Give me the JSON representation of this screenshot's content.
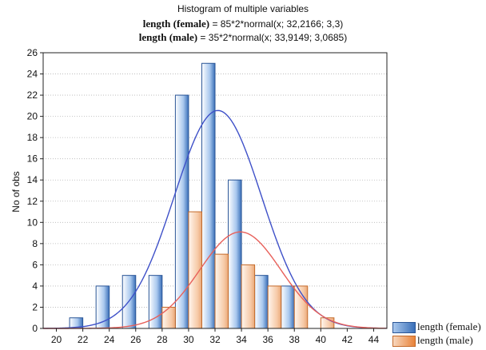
{
  "chart_data": {
    "type": "bar",
    "title": "Histogram of multiple variables",
    "subtitles": [
      {
        "label": "length (female)",
        "formula": "= 85*2*normal(x; 32,2166; 3,3)"
      },
      {
        "label": "length (male)",
        "formula": "= 35*2*normal(x; 33,9149; 3,0685)"
      }
    ],
    "xlabel": "",
    "ylabel": "No of obs",
    "xlim": [
      19,
      45
    ],
    "ylim": [
      0,
      26
    ],
    "x_ticks": [
      20,
      22,
      24,
      26,
      28,
      30,
      32,
      34,
      36,
      38,
      40,
      42,
      44
    ],
    "y_ticks": [
      0,
      2,
      4,
      6,
      8,
      10,
      12,
      14,
      16,
      18,
      20,
      22,
      24,
      26
    ],
    "bin_width": 2,
    "series": [
      {
        "name": "length (female)",
        "color": "#3a6fb8",
        "bins": [
          20,
          22,
          24,
          26,
          28,
          30,
          32,
          34,
          36,
          38,
          40,
          42,
          44
        ],
        "values": [
          0,
          1,
          4,
          5,
          5,
          22,
          25,
          14,
          5,
          4,
          0,
          0,
          0
        ],
        "fit": {
          "n": 85,
          "mean": 32.2166,
          "sd": 3.3,
          "color": "#3e50c8"
        }
      },
      {
        "name": "length (male)",
        "color": "#e8833a",
        "bins": [
          20,
          22,
          24,
          26,
          28,
          30,
          32,
          34,
          36,
          38,
          40,
          42,
          44
        ],
        "values": [
          0,
          0,
          0,
          0,
          2,
          11,
          7,
          6,
          4,
          4,
          1,
          0,
          0
        ],
        "fit": {
          "n": 35,
          "mean": 33.9149,
          "sd": 3.0685,
          "color": "#e8605a"
        }
      }
    ],
    "legend_position": "bottom-right"
  }
}
